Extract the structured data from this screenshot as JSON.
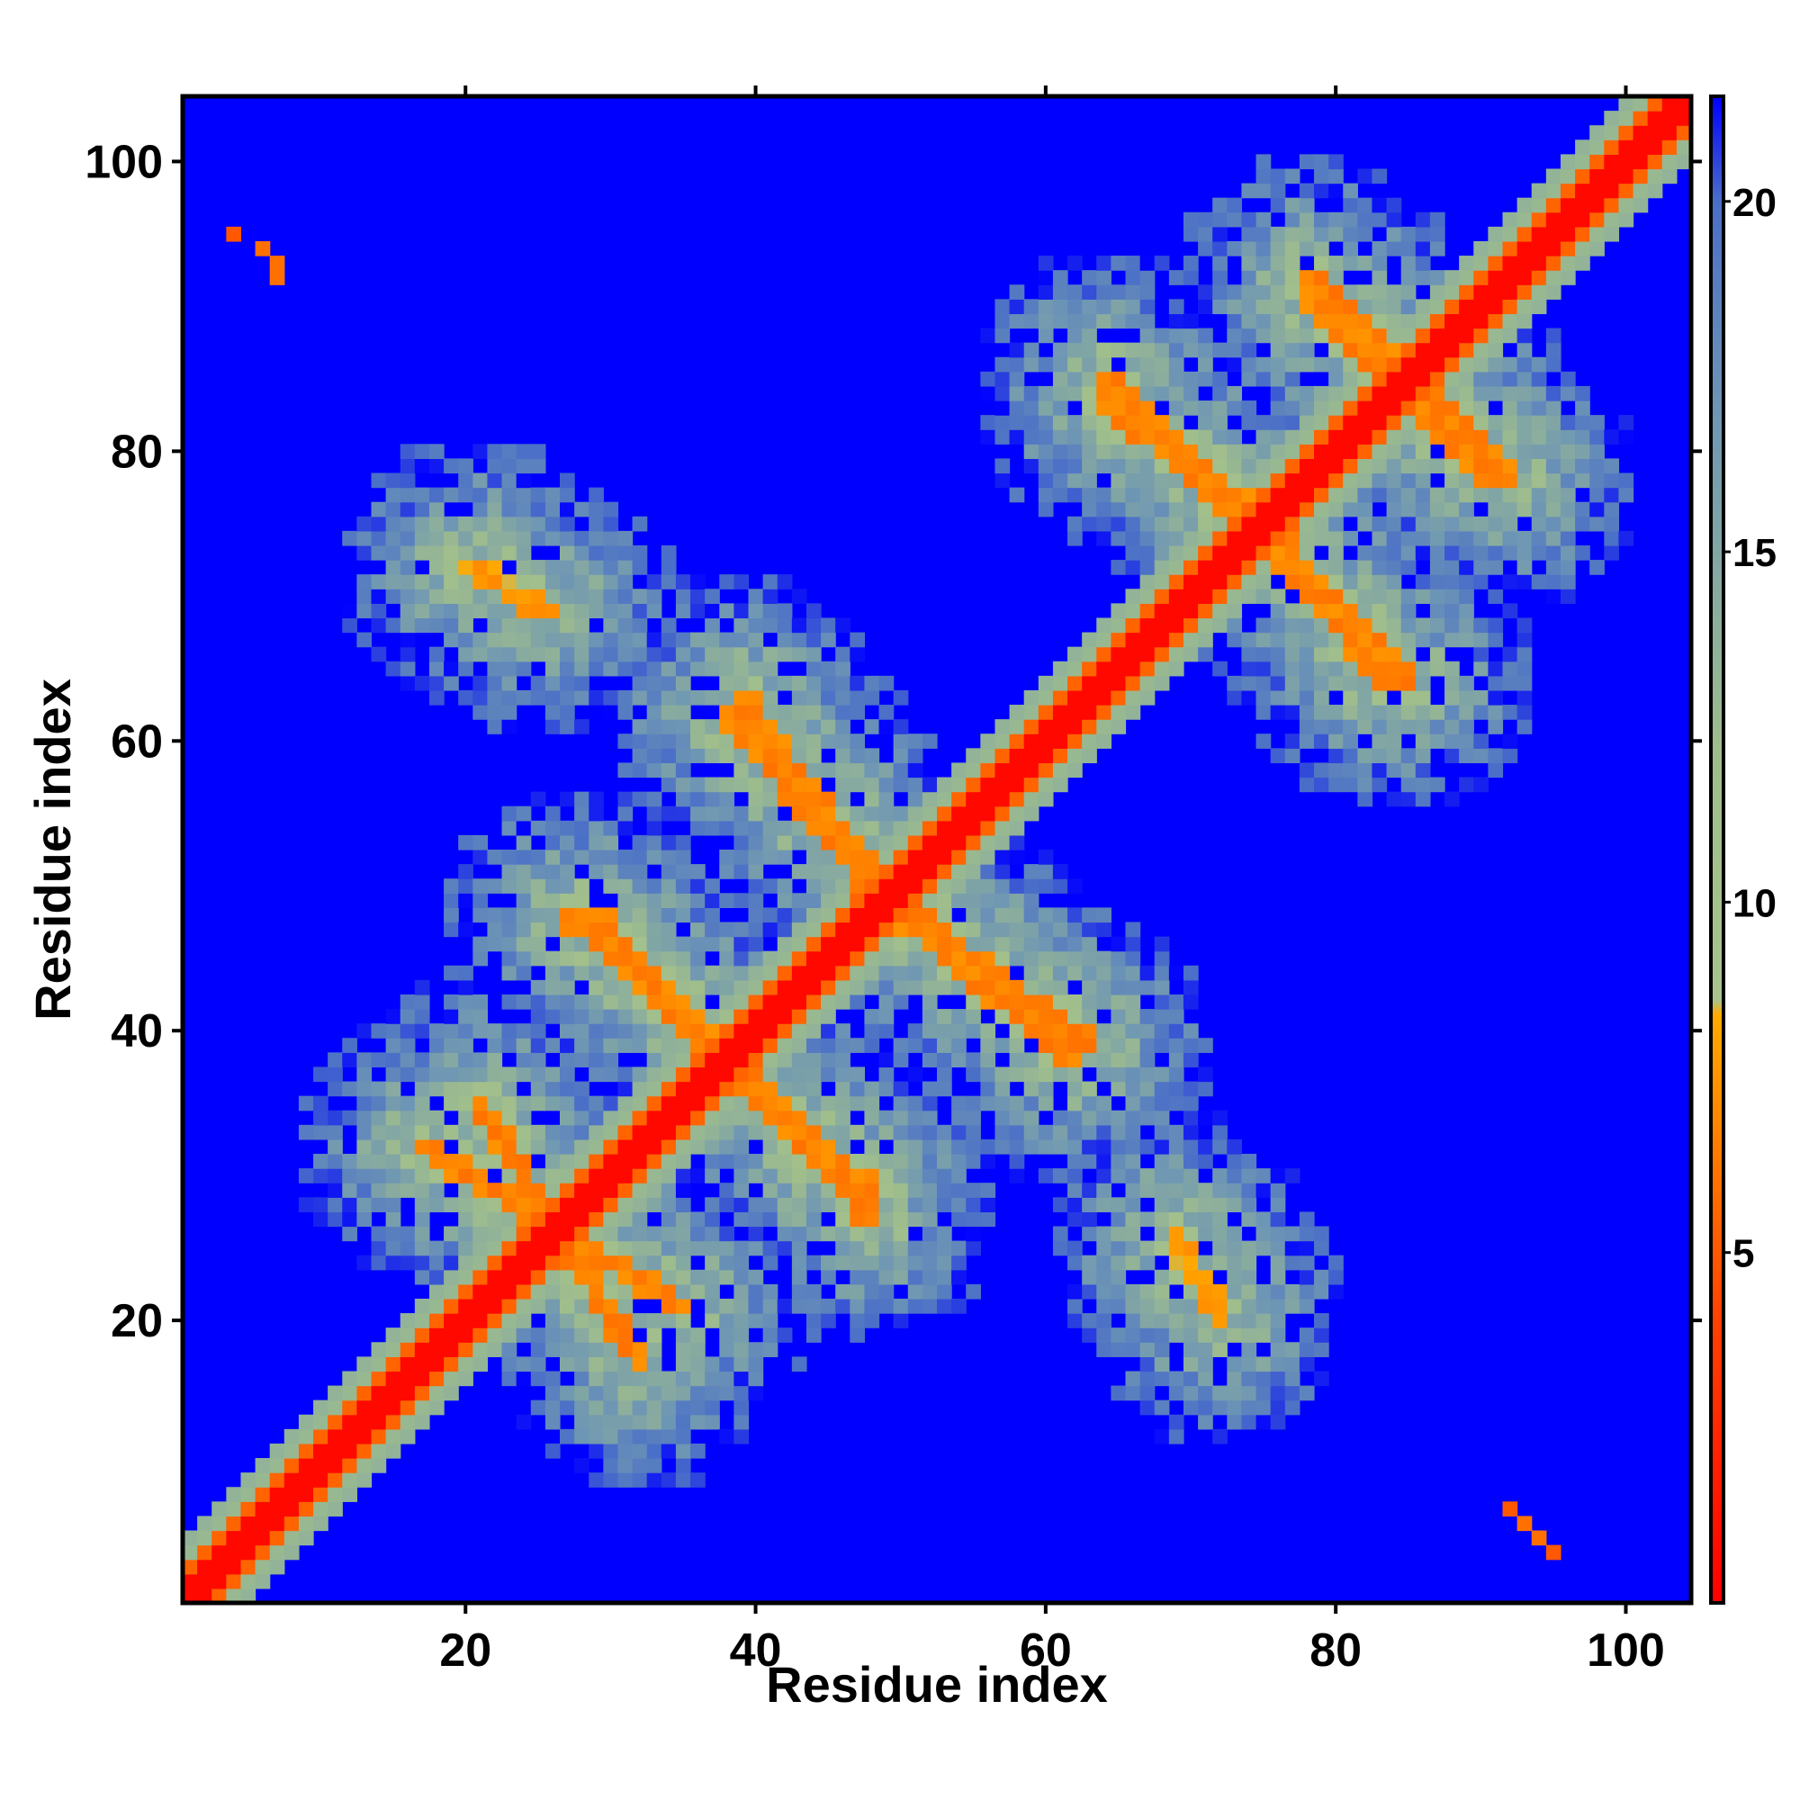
{
  "chart_data": {
    "type": "heatmap",
    "title": "",
    "xlabel": "Residue index",
    "ylabel": "Residue index",
    "xlim": [
      1,
      104
    ],
    "ylim": [
      1,
      104
    ],
    "x_ticks": [
      20,
      40,
      60,
      80,
      100
    ],
    "y_ticks": [
      20,
      40,
      60,
      80,
      100
    ],
    "colorbar": {
      "range": [
        0,
        21.5
      ],
      "ticks": [
        5,
        10,
        15,
        20
      ],
      "stops": [
        {
          "value": 0,
          "color": "#ff0000"
        },
        {
          "value": 4,
          "color": "#ff4000"
        },
        {
          "value": 8.4,
          "color": "#ffaa00"
        },
        {
          "value": 8.6,
          "color": "#a8c48c"
        },
        {
          "value": 12,
          "color": "#a0be8c"
        },
        {
          "value": 17,
          "color": "#6e96b4"
        },
        {
          "value": 20,
          "color": "#4a6ec8"
        },
        {
          "value": 21.5,
          "color": "#0000ff"
        }
      ]
    },
    "background_color": "#0000ff",
    "diagonal_color": "#ff0000",
    "contact_bands": [
      {
        "from": [
          21,
          35
        ],
        "to": [
          32,
          17
        ],
        "value": 6
      },
      {
        "from": [
          29,
          48
        ],
        "to": [
          38,
          38
        ],
        "value": 6
      },
      {
        "from": [
          39,
          37
        ],
        "to": [
          48,
          27
        ],
        "value": 6
      },
      {
        "from": [
          39,
          63
        ],
        "to": [
          48,
          51
        ],
        "value": 6
      },
      {
        "from": [
          50,
          48
        ],
        "to": [
          62,
          38
        ],
        "value": 6
      },
      {
        "from": [
          64,
          85
        ],
        "to": [
          74,
          75
        ],
        "value": 6
      },
      {
        "from": [
          78,
          92
        ],
        "to": [
          86,
          85
        ],
        "value": 6
      },
      {
        "from": [
          75,
          76
        ],
        "to": [
          83,
          64
        ],
        "value": 6
      },
      {
        "from": [
          85,
          84
        ],
        "to": [
          91,
          78
        ],
        "value": 6
      },
      {
        "from": [
          20,
          72
        ],
        "to": [
          26,
          69
        ],
        "value": 7
      },
      {
        "from": [
          69,
          25
        ],
        "to": [
          72,
          21
        ],
        "value": 7
      }
    ],
    "isolated_contacts": [
      {
        "i": 4,
        "j": 95,
        "value": 5
      },
      {
        "i": 6,
        "j": 94,
        "value": 6
      },
      {
        "i": 7,
        "j": 93,
        "value": 6
      },
      {
        "i": 7,
        "j": 92,
        "value": 6
      },
      {
        "i": 92,
        "j": 7,
        "value": 5
      },
      {
        "i": 93,
        "j": 6,
        "value": 6
      },
      {
        "i": 94,
        "j": 5,
        "value": 6
      },
      {
        "i": 95,
        "j": 4,
        "value": 5
      }
    ]
  }
}
